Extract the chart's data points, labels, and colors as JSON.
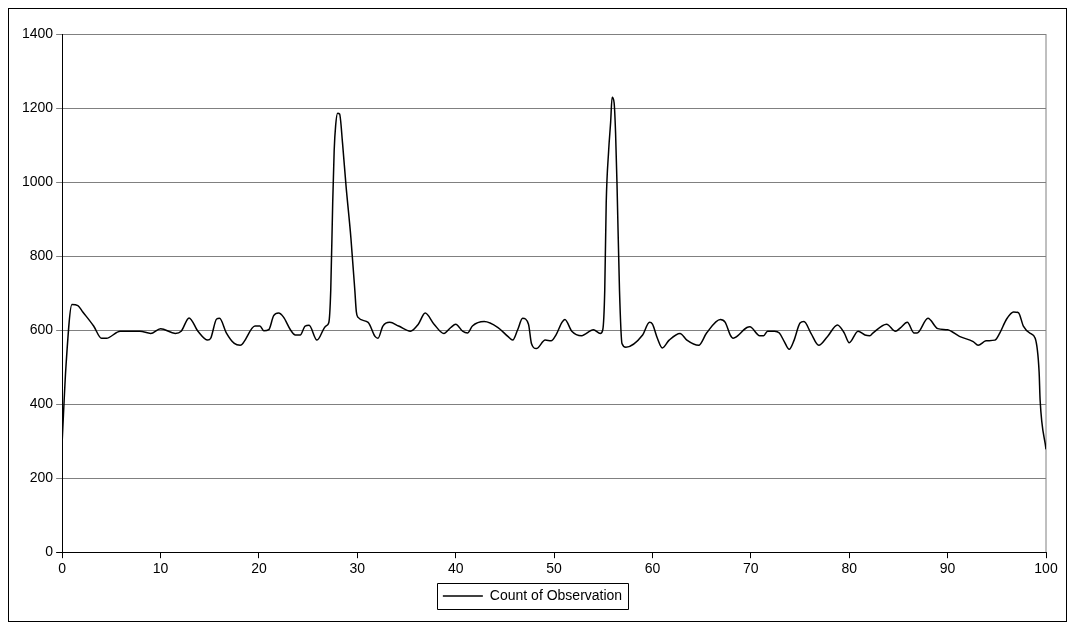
{
  "chart_data": {
    "type": "line",
    "legend": "bottom",
    "grid": "y",
    "marker": "none",
    "line_style": "solid",
    "xlim": [
      0,
      100
    ],
    "xticks": [
      0,
      10,
      20,
      30,
      40,
      50,
      60,
      70,
      80,
      90,
      100
    ],
    "ylim": [
      0,
      1400
    ],
    "yticks": [
      0,
      200,
      400,
      600,
      800,
      1000,
      1200,
      1400
    ],
    "series": [
      {
        "name": "Count of Observation",
        "color": "#000000",
        "x": [
          0,
          0.4,
          1,
          1.6,
          2.1,
          3.2,
          4,
          4.5,
          5.9,
          7.9,
          9,
          10,
          11.5,
          12.1,
          12.9,
          13.8,
          14.8,
          15.1,
          15.7,
          16,
          16.7,
          17.5,
          18.1,
          19.6,
          20.1,
          20.5,
          21,
          21.5,
          22,
          22.5,
          23.2,
          23.7,
          24.2,
          24.7,
          25.1,
          25.9,
          26.8,
          27.1,
          27.3,
          27.5,
          27.65,
          27.8,
          28,
          28.2,
          28.5,
          28.85,
          29.35,
          29.75,
          29.9,
          30.05,
          31.1,
          31.8,
          32.1,
          32.6,
          33.3,
          34.2,
          35.4,
          36.2,
          36.9,
          37.8,
          38.8,
          39.5,
          40,
          40.7,
          41.2,
          41.7,
          42.9,
          44.3,
          45.3,
          45.8,
          46.3,
          46.8,
          47.4,
          47.7,
          48.2,
          49.1,
          49.7,
          50.2,
          50.8,
          51.1,
          51.8,
          52.8,
          54,
          54.7,
          54.95,
          55.15,
          55.3,
          55.55,
          55.75,
          55.9,
          56.1,
          56.25,
          56.4,
          56.65,
          56.9,
          57.3,
          59,
          59.7,
          60,
          60.5,
          61,
          61.7,
          62.8,
          63.5,
          64.7,
          65.5,
          66.9,
          67.4,
          67.9,
          68.2,
          69.6,
          69.9,
          70.9,
          71.3,
          71.7,
          72.4,
          72.9,
          73.4,
          73.9,
          74.4,
          75,
          75.4,
          76.1,
          76.9,
          77.8,
          78.8,
          79.5,
          80,
          80.9,
          81.6,
          82.1,
          82.4,
          83.8,
          84.7,
          85.2,
          85.9,
          86.6,
          86.9,
          88,
          89,
          90,
          91.2,
          92.6,
          93.1,
          93.9,
          94.8,
          95.3,
          96,
          96.7,
          97.2,
          97.7,
          98.4,
          98.9,
          99.3,
          99.4,
          100
        ],
        "values": [
          298,
          507,
          669,
          666,
          649,
          611,
          578,
          578,
          597,
          597,
          591,
          604,
          591,
          597,
          633,
          597,
          573,
          578,
          630,
          632,
          592,
          564,
          559,
          611,
          611,
          598,
          601,
          639,
          646,
          635,
          601,
          587,
          587,
          611,
          613,
          573,
          611,
          620,
          707,
          944,
          1086,
          1153,
          1186,
          1184,
          1105,
          991,
          849,
          707,
          650,
          635,
          621,
          583,
          578,
          611,
          621,
          611,
          597,
          616,
          646,
          616,
          591,
          607,
          616,
          597,
          592,
          611,
          623,
          607,
          583,
          573,
          601,
          632,
          616,
          564,
          550,
          573,
          571,
          587,
          621,
          629,
          597,
          585,
          601,
          591,
          601,
          707,
          944,
          1086,
          1162,
          1229,
          1215,
          1134,
          991,
          707,
          564,
          554,
          587,
          621,
          616,
          578,
          552,
          573,
          591,
          573,
          559,
          592,
          629,
          621,
          587,
          578,
          607,
          609,
          585,
          585,
          597,
          597,
          592,
          569,
          548,
          573,
          619,
          623,
          592,
          559,
          583,
          614,
          592,
          566,
          597,
          587,
          585,
          592,
          616,
          597,
          606,
          621,
          592,
          592,
          632,
          604,
          601,
          583,
          569,
          559,
          571,
          573,
          592,
          630,
          649,
          647,
          611,
          591,
          578,
          487,
          412,
          278
        ]
      }
    ]
  }
}
